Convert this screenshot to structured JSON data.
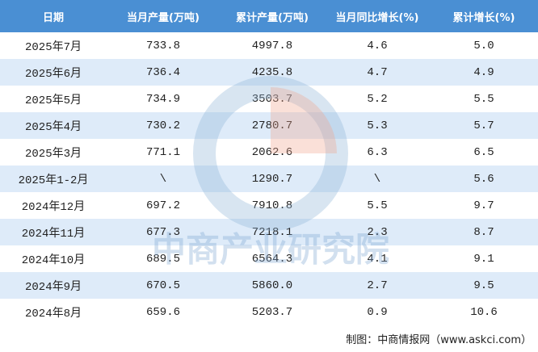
{
  "table": {
    "header": [
      "日期",
      "当月产量(万吨)",
      "累计产量(万吨)",
      "当月同比增长(%)",
      "累计增长(%)"
    ],
    "rows": [
      [
        "2025年7月",
        "733.8",
        "4997.8",
        "4.6",
        "5.0"
      ],
      [
        "2025年6月",
        "736.4",
        "4235.8",
        "4.7",
        "4.9"
      ],
      [
        "2025年5月",
        "734.9",
        "3503.7",
        "5.2",
        "5.5"
      ],
      [
        "2025年4月",
        "730.2",
        "2780.7",
        "5.3",
        "5.7"
      ],
      [
        "2025年3月",
        "771.1",
        "2062.6",
        "6.3",
        "6.5"
      ],
      [
        "2025年1-2月",
        "\\",
        "1290.7",
        "\\",
        "5.6"
      ],
      [
        "2024年12月",
        "697.2",
        "7910.8",
        "5.5",
        "9.7"
      ],
      [
        "2024年11月",
        "677.3",
        "7218.1",
        "2.3",
        "8.7"
      ],
      [
        "2024年10月",
        "689.5",
        "6564.3",
        "4.1",
        "9.1"
      ],
      [
        "2024年9月",
        "670.5",
        "5860.0",
        "2.7",
        "9.5"
      ],
      [
        "2024年8月",
        "659.6",
        "5203.7",
        "0.9",
        "10.6"
      ]
    ]
  },
  "watermark": "中商产业研究院",
  "footer": "制图：中商情报网（www.askci.com）"
}
